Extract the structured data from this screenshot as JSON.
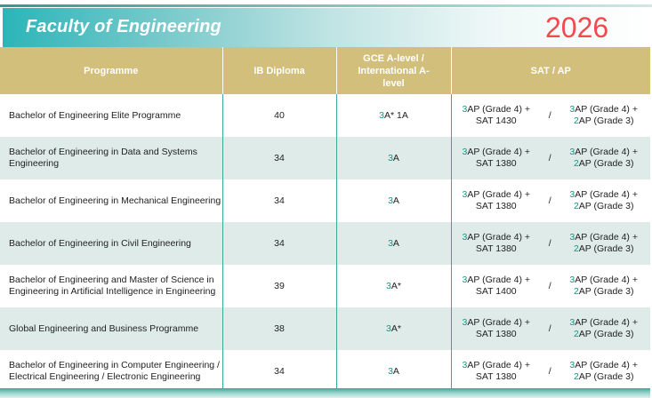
{
  "header": {
    "title": "Faculty of Engineering",
    "year": "2026"
  },
  "columns": [
    "Programme",
    "IB Diploma",
    "GCE A-level / International A-level",
    "SAT / AP"
  ],
  "rows": [
    {
      "programme": "Bachelor of Engineering Elite Programme",
      "ib": "40",
      "gce": "3A* 1A",
      "sat_a1": "3AP (Grade 4) +",
      "sat_a2": "SAT 1430",
      "sep": "/",
      "ap_b1": "3AP (Grade 4) +",
      "ap_b2": "2AP (Grade 3)"
    },
    {
      "programme": "Bachelor of Engineering in Data and Systems Engineering",
      "ib": "34",
      "gce": "3A",
      "sat_a1": "3AP (Grade 4) +",
      "sat_a2": "SAT 1380",
      "sep": "/",
      "ap_b1": "3AP (Grade 4) +",
      "ap_b2": "2AP (Grade 3)"
    },
    {
      "programme": "Bachelor of Engineering in Mechanical Engineering",
      "ib": "34",
      "gce": "3A",
      "sat_a1": "3AP (Grade 4) +",
      "sat_a2": "SAT 1380",
      "sep": "/",
      "ap_b1": "3AP (Grade 4) +",
      "ap_b2": "2AP (Grade 3)"
    },
    {
      "programme": "Bachelor of Engineering in Civil Engineering",
      "ib": "34",
      "gce": "3A",
      "sat_a1": "3AP (Grade 4) +",
      "sat_a2": "SAT 1380",
      "sep": "/",
      "ap_b1": "3AP (Grade 4) +",
      "ap_b2": "2AP (Grade 3)"
    },
    {
      "programme": "Bachelor of Engineering and Master of Science in Engineering in Artificial Intelligence in Engineering",
      "ib": "39",
      "gce": "3A*",
      "sat_a1": "3AP (Grade 4) +",
      "sat_a2": "SAT 1400",
      "sep": "/",
      "ap_b1": "3AP (Grade 4) +",
      "ap_b2": "2AP (Grade 3)"
    },
    {
      "programme": "Global Engineering and Business Programme",
      "ib": "38",
      "gce": "3A*",
      "sat_a1": "3AP (Grade 4) +",
      "sat_a2": "SAT 1380",
      "sep": "/",
      "ap_b1": "3AP (Grade 4) +",
      "ap_b2": "2AP (Grade 3)"
    },
    {
      "programme": "Bachelor of Engineering in Computer Engineering / Electrical Engineering / Electronic Engineering",
      "ib": "34",
      "gce": "3A",
      "sat_a1": "3AP (Grade 4) +",
      "sat_a2": "SAT 1380",
      "sep": "/",
      "ap_b1": "3AP (Grade 4) +",
      "ap_b2": "2AP (Grade 3)"
    }
  ],
  "colors": {
    "accent": "#2aa89a",
    "header_bg": "#d3bf7c",
    "year": "#f04a4f",
    "alt_row": "#deebe8"
  }
}
